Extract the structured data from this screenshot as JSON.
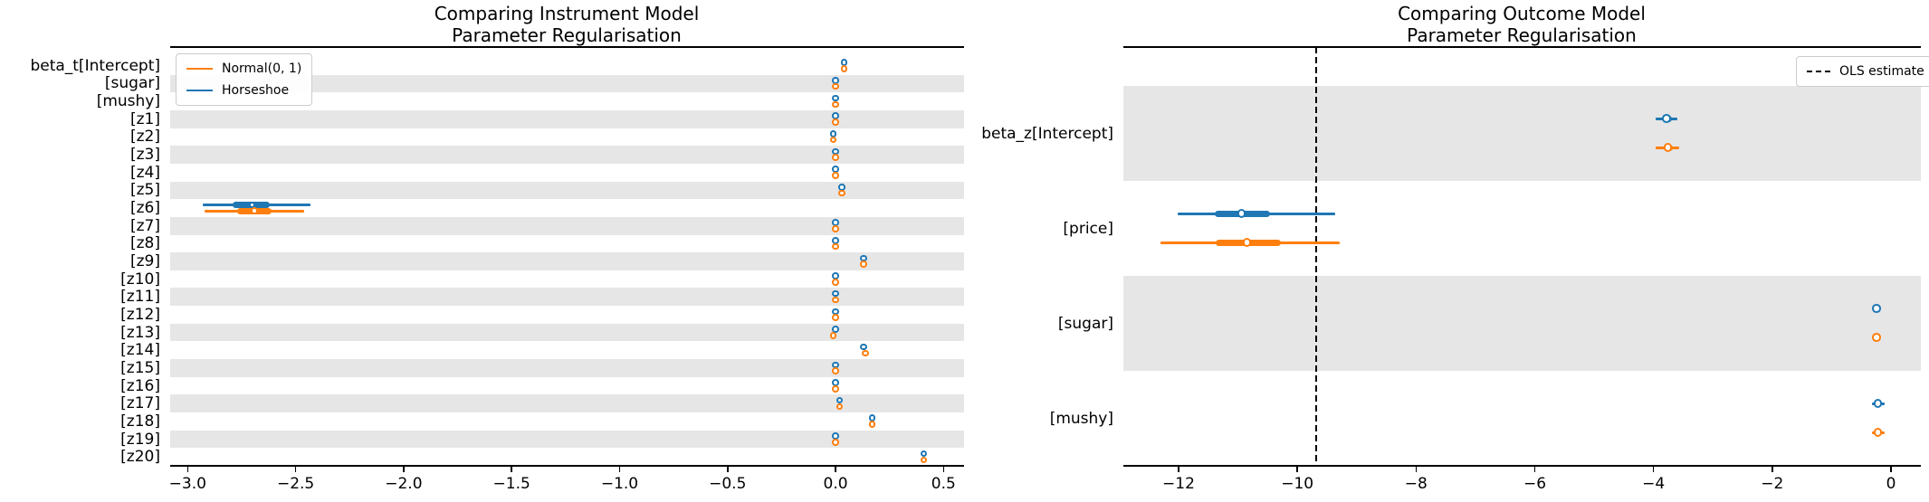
{
  "style": {
    "background": "#ffffff",
    "band_color": "#e6e6e6",
    "horseshoe_color": "#1f77b4",
    "normal_color": "#ff7f0e",
    "reference_color": "#000000",
    "spine_color": "#000000",
    "text_color": "#000000"
  },
  "chart_data": [
    {
      "type": "forest",
      "title": "Comparing Instrument Model\nParameter Regularisation",
      "xlabel": "",
      "ylabel": "",
      "xlim": [
        -3.081,
        0.595
      ],
      "grid": false,
      "legend": {
        "position": "top-left",
        "entries": [
          {
            "label": "Normal(0, 1)",
            "color": "#ff7f0e",
            "style": "solid"
          },
          {
            "label": "Horseshoe",
            "color": "#1f77b4",
            "style": "solid"
          }
        ]
      },
      "xticks": [
        {
          "value": -3.0,
          "label": "−3.0"
        },
        {
          "value": -2.5,
          "label": "−2.5"
        },
        {
          "value": -2.0,
          "label": "−2.0"
        },
        {
          "value": -1.5,
          "label": "−1.5"
        },
        {
          "value": -1.0,
          "label": "−1.0"
        },
        {
          "value": -0.5,
          "label": "−0.5"
        },
        {
          "value": 0.0,
          "label": "0.0"
        },
        {
          "value": 0.5,
          "label": "0.5"
        }
      ],
      "rows": [
        {
          "label": "beta_t[Intercept]",
          "shaded": false,
          "horseshoe": {
            "mean": 0.04
          },
          "normal": {
            "mean": 0.04
          }
        },
        {
          "label": "[sugar]",
          "shaded": true,
          "horseshoe": {
            "mean": 0.0
          },
          "normal": {
            "mean": 0.0
          }
        },
        {
          "label": "[mushy]",
          "shaded": false,
          "horseshoe": {
            "mean": 0.0
          },
          "normal": {
            "mean": 0.0
          }
        },
        {
          "label": "[z1]",
          "shaded": true,
          "horseshoe": {
            "mean": 0.0
          },
          "normal": {
            "mean": 0.0
          }
        },
        {
          "label": "[z2]",
          "shaded": false,
          "horseshoe": {
            "mean": -0.01
          },
          "normal": {
            "mean": -0.01
          }
        },
        {
          "label": "[z3]",
          "shaded": true,
          "horseshoe": {
            "mean": 0.0
          },
          "normal": {
            "mean": 0.0
          }
        },
        {
          "label": "[z4]",
          "shaded": false,
          "horseshoe": {
            "mean": 0.0
          },
          "normal": {
            "mean": 0.0
          }
        },
        {
          "label": "[z5]",
          "shaded": true,
          "horseshoe": {
            "mean": 0.03
          },
          "normal": {
            "mean": 0.03
          }
        },
        {
          "label": "[z6]",
          "shaded": false,
          "horseshoe": {
            "mean": -2.7,
            "ci": [
              -2.93,
              -2.43
            ],
            "thick": [
              -2.79,
              -2.62
            ]
          },
          "normal": {
            "mean": -2.69,
            "ci": [
              -2.92,
              -2.46
            ],
            "thick": [
              -2.77,
              -2.61
            ]
          }
        },
        {
          "label": "[z7]",
          "shaded": true,
          "horseshoe": {
            "mean": 0.0
          },
          "normal": {
            "mean": 0.0
          }
        },
        {
          "label": "[z8]",
          "shaded": false,
          "horseshoe": {
            "mean": 0.0
          },
          "normal": {
            "mean": 0.0
          }
        },
        {
          "label": "[z9]",
          "shaded": true,
          "horseshoe": {
            "mean": 0.13
          },
          "normal": {
            "mean": 0.13
          }
        },
        {
          "label": "[z10]",
          "shaded": false,
          "horseshoe": {
            "mean": 0.0
          },
          "normal": {
            "mean": 0.0
          }
        },
        {
          "label": "[z11]",
          "shaded": true,
          "horseshoe": {
            "mean": 0.0
          },
          "normal": {
            "mean": 0.0
          }
        },
        {
          "label": "[z12]",
          "shaded": false,
          "horseshoe": {
            "mean": 0.0
          },
          "normal": {
            "mean": 0.0
          }
        },
        {
          "label": "[z13]",
          "shaded": true,
          "horseshoe": {
            "mean": 0.0
          },
          "normal": {
            "mean": -0.01
          }
        },
        {
          "label": "[z14]",
          "shaded": false,
          "horseshoe": {
            "mean": 0.13
          },
          "normal": {
            "mean": 0.14
          }
        },
        {
          "label": "[z15]",
          "shaded": true,
          "horseshoe": {
            "mean": 0.0
          },
          "normal": {
            "mean": 0.0
          }
        },
        {
          "label": "[z16]",
          "shaded": false,
          "horseshoe": {
            "mean": 0.0
          },
          "normal": {
            "mean": 0.0
          }
        },
        {
          "label": "[z17]",
          "shaded": true,
          "horseshoe": {
            "mean": 0.02
          },
          "normal": {
            "mean": 0.02
          }
        },
        {
          "label": "[z18]",
          "shaded": false,
          "horseshoe": {
            "mean": 0.17
          },
          "normal": {
            "mean": 0.17
          }
        },
        {
          "label": "[z19]",
          "shaded": true,
          "horseshoe": {
            "mean": 0.0
          },
          "normal": {
            "mean": 0.0
          }
        },
        {
          "label": "[z20]",
          "shaded": false,
          "horseshoe": {
            "mean": 0.41
          },
          "normal": {
            "mean": 0.41
          }
        }
      ]
    },
    {
      "type": "forest",
      "title": "Comparing Outcome Model\nParameter Regularisation",
      "xlabel": "",
      "ylabel": "",
      "xlim": [
        -12.93,
        0.503
      ],
      "grid": false,
      "legend": {
        "position": "top-right",
        "entries": [
          {
            "label": "OLS estimate",
            "color": "#000000",
            "style": "dashed"
          }
        ]
      },
      "reference_line": {
        "value": -9.68,
        "style": "dashed",
        "color": "#000000",
        "label": "OLS estimate"
      },
      "xticks": [
        {
          "value": -12,
          "label": "−12"
        },
        {
          "value": -10,
          "label": "−10"
        },
        {
          "value": -8,
          "label": "−8"
        },
        {
          "value": -6,
          "label": "−6"
        },
        {
          "value": -4,
          "label": "−4"
        },
        {
          "value": -2,
          "label": "−2"
        },
        {
          "value": 0,
          "label": "0"
        }
      ],
      "rows": [
        {
          "label": "beta_z[Intercept]",
          "shaded": true,
          "horseshoe": {
            "mean": -3.77,
            "ci": [
              -3.97,
              -3.6
            ],
            "thick": [
              -3.85,
              -3.69
            ]
          },
          "normal": {
            "mean": -3.75,
            "ci": [
              -3.96,
              -3.57
            ],
            "thick": [
              -3.83,
              -3.67
            ]
          }
        },
        {
          "label": "[price]",
          "shaded": false,
          "horseshoe": {
            "mean": -10.93,
            "ci": [
              -12.02,
              -9.36
            ],
            "thick": [
              -11.39,
              -10.46
            ]
          },
          "normal": {
            "mean": -10.84,
            "ci": [
              -12.3,
              -9.28
            ],
            "thick": [
              -11.37,
              -10.27
            ]
          }
        },
        {
          "label": "[sugar]",
          "shaded": true,
          "horseshoe": {
            "mean": -0.23,
            "ci": [
              -0.28,
              -0.18
            ]
          },
          "normal": {
            "mean": -0.23,
            "ci": [
              -0.28,
              -0.18
            ]
          }
        },
        {
          "label": "[mushy]",
          "shaded": false,
          "horseshoe": {
            "mean": -0.21,
            "ci": [
              -0.32,
              -0.1
            ],
            "thick": [
              -0.26,
              -0.16
            ]
          },
          "normal": {
            "mean": -0.21,
            "ci": [
              -0.32,
              -0.1
            ],
            "thick": [
              -0.26,
              -0.16
            ]
          }
        }
      ]
    }
  ]
}
